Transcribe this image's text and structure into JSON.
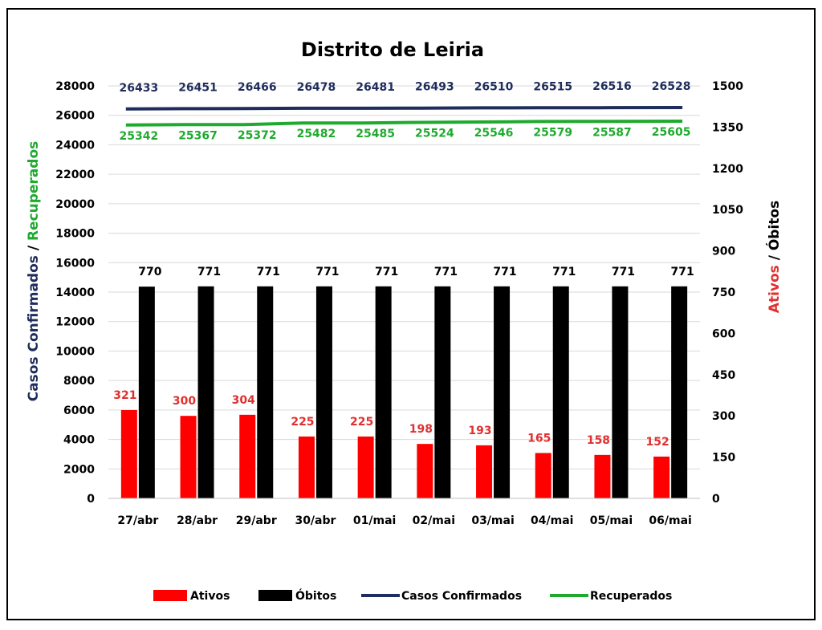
{
  "chart_data": {
    "type": "bar",
    "title": "Distrito de Leiria",
    "categories": [
      "27/abr",
      "28/abr",
      "29/abr",
      "30/abr",
      "01/mai",
      "02/mai",
      "03/mai",
      "04/mai",
      "05/mai",
      "06/mai"
    ],
    "y_left": {
      "label_part1": "Casos Confirmados",
      "label_sep": " / ",
      "label_part2": "Recuperados",
      "ylim": [
        0,
        28000
      ],
      "ticks": [
        0,
        2000,
        4000,
        6000,
        8000,
        10000,
        12000,
        14000,
        16000,
        18000,
        20000,
        22000,
        24000,
        26000,
        28000
      ]
    },
    "y_right": {
      "label_part1": "Ativos",
      "label_sep": " / ",
      "label_part2": "Óbitos",
      "ylim": [
        0,
        1500
      ],
      "ticks": [
        0,
        150,
        300,
        450,
        600,
        750,
        900,
        1050,
        1200,
        1350,
        1500
      ]
    },
    "grid": true,
    "legend_position": "bottom",
    "series": [
      {
        "name": "Ativos",
        "kind": "bar",
        "axis": "right",
        "color": "#ff0000",
        "label_color": "#e03030",
        "values": [
          321,
          300,
          304,
          225,
          225,
          198,
          193,
          165,
          158,
          152
        ]
      },
      {
        "name": "Óbitos",
        "kind": "bar",
        "axis": "right",
        "color": "#000000",
        "label_color": "#000000",
        "values": [
          770,
          771,
          771,
          771,
          771,
          771,
          771,
          771,
          771,
          771
        ]
      },
      {
        "name": "Casos Confirmados",
        "kind": "line",
        "axis": "left",
        "color": "#1f2d5c",
        "label_color": "#1f2d5c",
        "values": [
          26433,
          26451,
          26466,
          26478,
          26481,
          26493,
          26510,
          26515,
          26516,
          26528
        ]
      },
      {
        "name": "Recuperados",
        "kind": "line",
        "axis": "left",
        "color": "#1faa2e",
        "label_color": "#1faa2e",
        "values": [
          25342,
          25367,
          25372,
          25482,
          25485,
          25524,
          25546,
          25579,
          25587,
          25605
        ]
      }
    ]
  }
}
